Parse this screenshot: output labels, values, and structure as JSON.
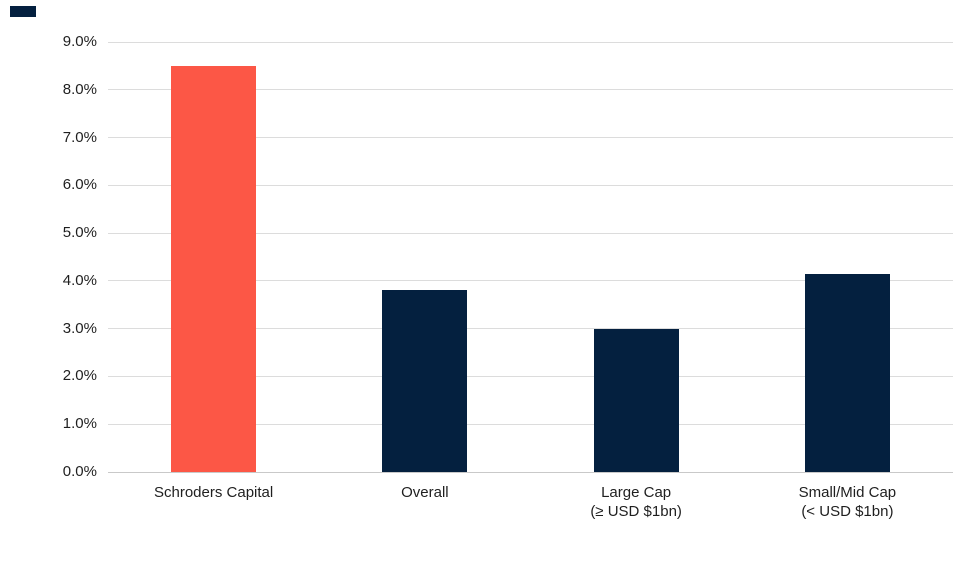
{
  "decor": {
    "top_left_mark_color": "#04203f"
  },
  "colors": {
    "background": "#ffffff",
    "accent_red": "#fc5746",
    "navy": "#04203f",
    "gridline": "#dcdcdc",
    "axis_line": "#c9c9c9",
    "text": "#1f1f1f"
  },
  "chart_data": {
    "type": "bar",
    "categories": [
      "Schroders Capital",
      "Overall",
      "Large Cap\n(≥ USD $1bn)",
      "Small/Mid Cap\n(< USD $1bn)"
    ],
    "values": [
      8.5,
      3.8,
      3.0,
      4.15
    ],
    "value_unit": "%",
    "bar_colors": [
      "#fc5746",
      "#04203f",
      "#04203f",
      "#04203f"
    ],
    "ylim": [
      0,
      9
    ],
    "ytick_labels": [
      "0.0%",
      "1.0%",
      "2.0%",
      "3.0%",
      "4.0%",
      "5.0%",
      "6.0%",
      "7.0%",
      "8.0%",
      "9.0%"
    ],
    "grid": true,
    "legend_position": "none"
  }
}
